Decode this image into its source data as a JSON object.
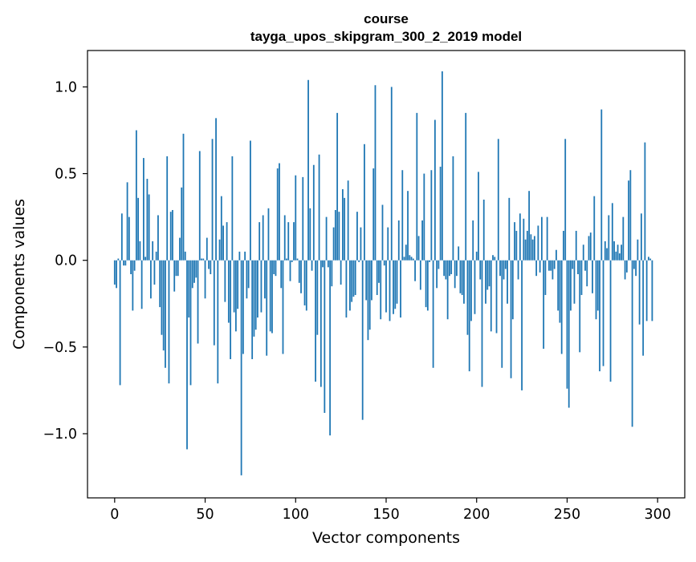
{
  "chart_data": {
    "type": "bar",
    "title": "course\ntayga_upos_skipgram_300_2_2019 model",
    "title_lines": [
      "course",
      "tayga_upos_skipgram_300_2_2019 model"
    ],
    "xlabel": "Vector components",
    "ylabel": "Components values",
    "xlim": [
      -15,
      315
    ],
    "ylim": [
      -1.37,
      1.21
    ],
    "xticks": [
      0,
      50,
      100,
      150,
      200,
      250,
      300
    ],
    "yticks": [
      -1.0,
      -0.5,
      0.0,
      0.5,
      1.0
    ],
    "xtick_labels": [
      "0",
      "50",
      "100",
      "150",
      "200",
      "250",
      "300"
    ],
    "ytick_labels": [
      "−1.0",
      "−0.5",
      "0.0",
      "0.5",
      "1.0"
    ],
    "grid": false,
    "bar_color": "#1f77b4",
    "x_start": 0,
    "values": [
      -0.14,
      -0.16,
      0.01,
      -0.72,
      0.27,
      -0.03,
      -0.03,
      0.45,
      0.25,
      -0.08,
      -0.29,
      -0.06,
      0.75,
      0.36,
      0.11,
      -0.28,
      0.59,
      0.02,
      0.47,
      0.38,
      -0.22,
      0.11,
      -0.14,
      0.05,
      0.26,
      -0.27,
      -0.43,
      -0.52,
      -0.62,
      0.6,
      -0.71,
      0.28,
      0.29,
      -0.18,
      -0.09,
      -0.09,
      0.13,
      0.42,
      0.73,
      0.05,
      -1.09,
      -0.33,
      -0.72,
      -0.16,
      -0.13,
      -0.1,
      -0.48,
      0.63,
      0.01,
      0.01,
      -0.22,
      0.13,
      -0.05,
      -0.08,
      0.7,
      -0.49,
      0.82,
      -0.71,
      0.12,
      0.37,
      0.2,
      -0.24,
      0.22,
      -0.36,
      -0.57,
      0.6,
      -0.3,
      -0.41,
      -0.28,
      0.05,
      -1.24,
      -0.54,
      0.05,
      -0.22,
      -0.16,
      0.69,
      -0.57,
      -0.44,
      -0.4,
      -0.33,
      0.22,
      -0.3,
      0.26,
      -0.22,
      -0.55,
      0.3,
      -0.41,
      -0.42,
      -0.08,
      -0.09,
      0.53,
      0.56,
      -0.16,
      -0.54,
      0.26,
      0.01,
      0.22,
      -0.12,
      -0.01,
      0.22,
      0.49,
      0.01,
      -0.13,
      -0.19,
      0.48,
      -0.26,
      -0.29,
      1.04,
      0.3,
      -0.06,
      0.55,
      -0.7,
      -0.43,
      0.61,
      -0.73,
      -0.04,
      -0.88,
      0.25,
      -0.04,
      -1.01,
      -0.15,
      0.19,
      0.29,
      0.85,
      0.28,
      -0.14,
      0.41,
      0.36,
      -0.33,
      0.46,
      -0.29,
      -0.24,
      -0.21,
      -0.2,
      0.28,
      -0.01,
      0.19,
      -0.92,
      0.67,
      -0.23,
      -0.46,
      -0.4,
      -0.23,
      0.53,
      1.01,
      -0.2,
      -0.13,
      -0.34,
      0.32,
      -0.03,
      -0.3,
      0.19,
      -0.35,
      1.0,
      -0.31,
      -0.28,
      -0.25,
      0.23,
      -0.33,
      0.52,
      0.02,
      0.09,
      0.4,
      0.03,
      0.02,
      0.01,
      -0.12,
      0.85,
      0.14,
      -0.17,
      0.23,
      0.5,
      -0.27,
      -0.29,
      -0.01,
      0.52,
      -0.62,
      0.81,
      -0.16,
      -0.05,
      0.54,
      1.09,
      -0.09,
      -0.11,
      -0.34,
      -0.09,
      -0.08,
      0.6,
      -0.16,
      -0.09,
      0.08,
      -0.19,
      -0.2,
      -0.25,
      0.85,
      -0.43,
      -0.64,
      -0.35,
      0.23,
      -0.31,
      0.05,
      0.51,
      -0.11,
      -0.73,
      0.35,
      -0.25,
      -0.17,
      -0.15,
      -0.41,
      0.03,
      0.02,
      -0.42,
      0.7,
      -0.09,
      -0.62,
      -0.11,
      -0.05,
      -0.25,
      0.36,
      -0.68,
      -0.34,
      0.22,
      0.17,
      -0.11,
      0.27,
      -0.75,
      0.24,
      0.12,
      0.17,
      0.4,
      0.15,
      0.12,
      0.14,
      -0.09,
      0.2,
      -0.07,
      0.25,
      -0.51,
      -0.2,
      0.25,
      -0.06,
      -0.06,
      -0.11,
      -0.05,
      0.06,
      -0.29,
      -0.36,
      -0.54,
      0.17,
      0.7,
      -0.74,
      -0.85,
      -0.29,
      -0.05,
      -0.25,
      0.17,
      -0.08,
      -0.53,
      -0.2,
      0.09,
      -0.06,
      -0.15,
      0.14,
      0.16,
      -0.19,
      0.37,
      -0.34,
      -0.29,
      -0.64,
      0.87,
      -0.61,
      0.11,
      0.07,
      0.26,
      -0.7,
      0.33,
      0.11,
      0.05,
      0.09,
      0.04,
      0.09,
      0.25,
      -0.11,
      -0.07,
      0.46,
      0.52,
      -0.96,
      -0.05,
      -0.09,
      0.12,
      -0.37,
      0.27,
      -0.55,
      0.68,
      -0.35,
      0.02,
      0.01,
      -0.35
    ]
  }
}
